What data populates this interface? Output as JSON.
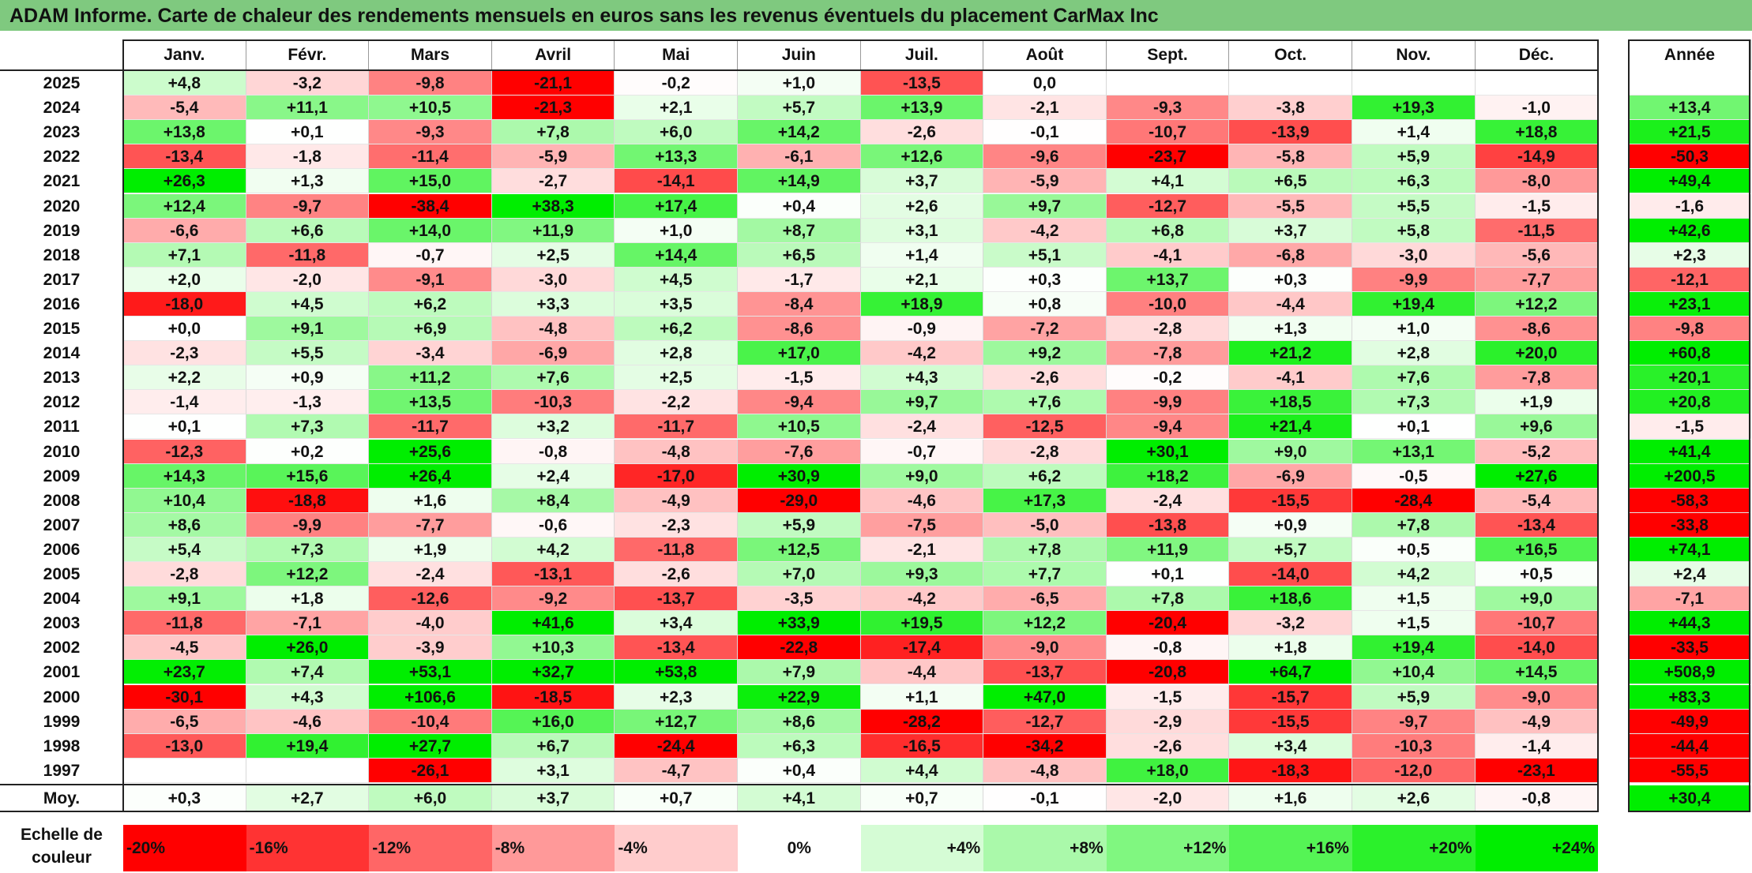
{
  "title": "ADAM Informe. Carte de chaleur des rendements mensuels en euros sans les revenus éventuels du placement CarMax Inc",
  "chart_data": {
    "type": "heatmap",
    "months": [
      "Janv.",
      "Févr.",
      "Mars",
      "Avril",
      "Mai",
      "Juin",
      "Juil.",
      "Août",
      "Sept.",
      "Oct.",
      "Nov.",
      "Déc."
    ],
    "annual_header": "Année",
    "average_label": "Moy.",
    "rows": [
      {
        "year": "2025",
        "values": [
          "+4,8",
          "-3,2",
          "-9,8",
          "-21,1",
          "-0,2",
          "+1,0",
          "-13,5",
          "0,0",
          "",
          "",
          "",
          ""
        ],
        "annual": ""
      },
      {
        "year": "2024",
        "values": [
          "-5,4",
          "+11,1",
          "+10,5",
          "-21,3",
          "+2,1",
          "+5,7",
          "+13,9",
          "-2,1",
          "-9,3",
          "-3,8",
          "+19,3",
          "-1,0"
        ],
        "annual": "+13,4"
      },
      {
        "year": "2023",
        "values": [
          "+13,8",
          "+0,1",
          "-9,3",
          "+7,8",
          "+6,0",
          "+14,2",
          "-2,6",
          "-0,1",
          "-10,7",
          "-13,9",
          "+1,4",
          "+18,8"
        ],
        "annual": "+21,5"
      },
      {
        "year": "2022",
        "values": [
          "-13,4",
          "-1,8",
          "-11,4",
          "-5,9",
          "+13,3",
          "-6,1",
          "+12,6",
          "-9,6",
          "-23,7",
          "-5,8",
          "+5,9",
          "-14,9"
        ],
        "annual": "-50,3"
      },
      {
        "year": "2021",
        "values": [
          "+26,3",
          "+1,3",
          "+15,0",
          "-2,7",
          "-14,1",
          "+14,9",
          "+3,7",
          "-5,9",
          "+4,1",
          "+6,5",
          "+6,3",
          "-8,0"
        ],
        "annual": "+49,4"
      },
      {
        "year": "2020",
        "values": [
          "+12,4",
          "-9,7",
          "-38,4",
          "+38,3",
          "+17,4",
          "+0,4",
          "+2,6",
          "+9,7",
          "-12,7",
          "-5,5",
          "+5,5",
          "-1,5"
        ],
        "annual": "-1,6"
      },
      {
        "year": "2019",
        "values": [
          "-6,6",
          "+6,6",
          "+14,0",
          "+11,9",
          "+1,0",
          "+8,7",
          "+3,1",
          "-4,2",
          "+6,8",
          "+3,7",
          "+5,8",
          "-11,5"
        ],
        "annual": "+42,6"
      },
      {
        "year": "2018",
        "values": [
          "+7,1",
          "-11,8",
          "-0,7",
          "+2,5",
          "+14,4",
          "+6,5",
          "+1,4",
          "+5,1",
          "-4,1",
          "-6,8",
          "-3,0",
          "-5,6"
        ],
        "annual": "+2,3"
      },
      {
        "year": "2017",
        "values": [
          "+2,0",
          "-2,0",
          "-9,1",
          "-3,0",
          "+4,5",
          "-1,7",
          "+2,1",
          "+0,3",
          "+13,7",
          "+0,3",
          "-9,9",
          "-7,7"
        ],
        "annual": "-12,1"
      },
      {
        "year": "2016",
        "values": [
          "-18,0",
          "+4,5",
          "+6,2",
          "+3,3",
          "+3,5",
          "-8,4",
          "+18,9",
          "+0,8",
          "-10,0",
          "-4,4",
          "+19,4",
          "+12,2"
        ],
        "annual": "+23,1"
      },
      {
        "year": "2015",
        "values": [
          "+0,0",
          "+9,1",
          "+6,9",
          "-4,8",
          "+6,2",
          "-8,6",
          "-0,9",
          "-7,2",
          "-2,8",
          "+1,3",
          "+1,0",
          "-8,6"
        ],
        "annual": "-9,8"
      },
      {
        "year": "2014",
        "values": [
          "-2,3",
          "+5,5",
          "-3,4",
          "-6,9",
          "+2,8",
          "+17,0",
          "-4,2",
          "+9,2",
          "-7,8",
          "+21,2",
          "+2,8",
          "+20,0"
        ],
        "annual": "+60,8"
      },
      {
        "year": "2013",
        "values": [
          "+2,2",
          "+0,9",
          "+11,2",
          "+7,6",
          "+2,5",
          "-1,5",
          "+4,3",
          "-2,6",
          "-0,2",
          "-4,1",
          "+7,6",
          "-7,8"
        ],
        "annual": "+20,1"
      },
      {
        "year": "2012",
        "values": [
          "-1,4",
          "-1,3",
          "+13,5",
          "-10,3",
          "-2,2",
          "-9,4",
          "+9,7",
          "+7,6",
          "-9,9",
          "+18,5",
          "+7,3",
          "+1,9"
        ],
        "annual": "+20,8"
      },
      {
        "year": "2011",
        "values": [
          "+0,1",
          "+7,3",
          "-11,7",
          "+3,2",
          "-11,7",
          "+10,5",
          "-2,4",
          "-12,5",
          "-9,4",
          "+21,4",
          "+0,1",
          "+9,6"
        ],
        "annual": "-1,5"
      },
      {
        "year": "2010",
        "values": [
          "-12,3",
          "+0,2",
          "+25,6",
          "-0,8",
          "-4,8",
          "-7,6",
          "-0,7",
          "-2,8",
          "+30,1",
          "+9,0",
          "+13,1",
          "-5,2"
        ],
        "annual": "+41,4"
      },
      {
        "year": "2009",
        "values": [
          "+14,3",
          "+15,6",
          "+26,4",
          "+2,4",
          "-17,0",
          "+30,9",
          "+9,0",
          "+6,2",
          "+18,2",
          "-6,9",
          "-0,5",
          "+27,6"
        ],
        "annual": "+200,5"
      },
      {
        "year": "2008",
        "values": [
          "+10,4",
          "-18,8",
          "+1,6",
          "+8,4",
          "-4,9",
          "-29,0",
          "-4,6",
          "+17,3",
          "-2,4",
          "-15,5",
          "-28,4",
          "-5,4"
        ],
        "annual": "-58,3"
      },
      {
        "year": "2007",
        "values": [
          "+8,6",
          "-9,9",
          "-7,7",
          "-0,6",
          "-2,3",
          "+5,9",
          "-7,5",
          "-5,0",
          "-13,8",
          "+0,9",
          "+7,8",
          "-13,4"
        ],
        "annual": "-33,8"
      },
      {
        "year": "2006",
        "values": [
          "+5,4",
          "+7,3",
          "+1,9",
          "+4,2",
          "-11,8",
          "+12,5",
          "-2,1",
          "+7,8",
          "+11,9",
          "+5,7",
          "+0,5",
          "+16,5"
        ],
        "annual": "+74,1"
      },
      {
        "year": "2005",
        "values": [
          "-2,8",
          "+12,2",
          "-2,4",
          "-13,1",
          "-2,6",
          "+7,0",
          "+9,3",
          "+7,7",
          "+0,1",
          "-14,0",
          "+4,2",
          "+0,5"
        ],
        "annual": "+2,4"
      },
      {
        "year": "2004",
        "values": [
          "+9,1",
          "+1,8",
          "-12,6",
          "-9,2",
          "-13,7",
          "-3,5",
          "-4,2",
          "-6,5",
          "+7,8",
          "+18,6",
          "+1,5",
          "+9,0"
        ],
        "annual": "-7,1"
      },
      {
        "year": "2003",
        "values": [
          "-11,8",
          "-7,1",
          "-4,0",
          "+41,6",
          "+3,4",
          "+33,9",
          "+19,5",
          "+12,2",
          "-20,4",
          "-3,2",
          "+1,5",
          "-10,7"
        ],
        "annual": "+44,3"
      },
      {
        "year": "2002",
        "values": [
          "-4,5",
          "+26,0",
          "-3,9",
          "+10,3",
          "-13,4",
          "-22,8",
          "-17,4",
          "-9,0",
          "-0,8",
          "+1,8",
          "+19,4",
          "-14,0"
        ],
        "annual": "-33,5"
      },
      {
        "year": "2001",
        "values": [
          "+23,7",
          "+7,4",
          "+53,1",
          "+32,7",
          "+53,8",
          "+7,9",
          "-4,4",
          "-13,7",
          "-20,8",
          "+64,7",
          "+10,4",
          "+14,5"
        ],
        "annual": "+508,9"
      },
      {
        "year": "2000",
        "values": [
          "-30,1",
          "+4,3",
          "+106,6",
          "-18,5",
          "+2,3",
          "+22,9",
          "+1,1",
          "+47,0",
          "-1,5",
          "-15,7",
          "+5,9",
          "-9,0"
        ],
        "annual": "+83,3"
      },
      {
        "year": "1999",
        "values": [
          "-6,5",
          "-4,6",
          "-10,4",
          "+16,0",
          "+12,7",
          "+8,6",
          "-28,2",
          "-12,7",
          "-2,9",
          "-15,5",
          "-9,7",
          "-4,9"
        ],
        "annual": "-49,9"
      },
      {
        "year": "1998",
        "values": [
          "-13,0",
          "+19,4",
          "+27,7",
          "+6,7",
          "-24,4",
          "+6,3",
          "-16,5",
          "-34,2",
          "-2,6",
          "+3,4",
          "-10,3",
          "-1,4"
        ],
        "annual": "-44,4"
      },
      {
        "year": "1997",
        "values": [
          "",
          "",
          "-26,1",
          "+3,1",
          "-4,7",
          "+0,4",
          "+4,4",
          "-4,8",
          "+18,0",
          "-18,3",
          "-12,0",
          "-23,1"
        ],
        "annual": "-55,5"
      }
    ],
    "averages": [
      "+0,3",
      "+2,7",
      "+6,0",
      "+3,7",
      "+0,7",
      "+4,1",
      "+0,7",
      "-0,1",
      "-2,0",
      "+1,6",
      "+2,6",
      "-0,8"
    ],
    "average_annual": "+30,4",
    "scale_label": "Echelle de couleur",
    "scale": [
      {
        "label": "-20%",
        "value": -20
      },
      {
        "label": "-16%",
        "value": -16
      },
      {
        "label": "-12%",
        "value": -12
      },
      {
        "label": "-8%",
        "value": -8
      },
      {
        "label": "-4%",
        "value": -4
      },
      {
        "label": "0%",
        "value": 0
      },
      {
        "label": "+4%",
        "value": 4
      },
      {
        "label": "+8%",
        "value": 8
      },
      {
        "label": "+12%",
        "value": 12
      },
      {
        "label": "+16%",
        "value": 16
      },
      {
        "label": "+20%",
        "value": 20
      },
      {
        "label": "+24%",
        "value": 24
      }
    ],
    "colors": {
      "negative_max": "#ff0000",
      "neutral": "#ffffff",
      "positive_max": "#00ee00",
      "title_bg": "#7fc97f"
    }
  }
}
